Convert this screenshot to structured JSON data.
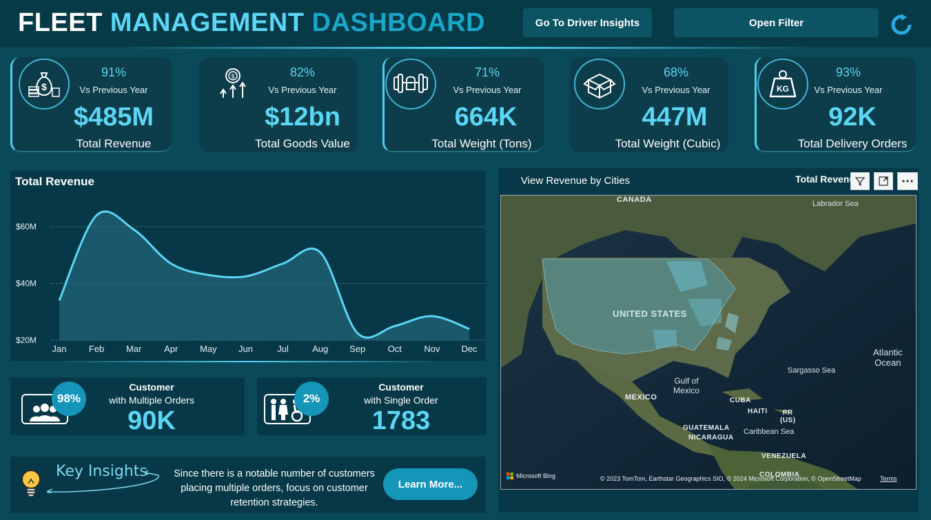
{
  "header": {
    "title_part1": "FLEET",
    "title_part2": "MANAGEMENT",
    "title_part3": "DASHBOARD",
    "driver_btn": "Go To Driver Insights",
    "filter_btn": "Open Filter"
  },
  "kpis": [
    {
      "pct": "91%",
      "vs": "Vs Previous Year",
      "value": "$485M",
      "label": "Total Revenue",
      "icon": "money-bag-icon"
    },
    {
      "pct": "82%",
      "vs": "Vs Previous Year",
      "value": "$12bn",
      "label": "Total Goods Value",
      "icon": "dollar-growth-icon"
    },
    {
      "pct": "71%",
      "vs": "Vs Previous Year",
      "value": "664K",
      "label": "Total Weight (Tons)",
      "icon": "dumbbell-icon"
    },
    {
      "pct": "68%",
      "vs": "Vs Previous Year",
      "value": "447M",
      "label": "Total Weight (Cubic)",
      "icon": "box-icon"
    },
    {
      "pct": "93%",
      "vs": "Vs Previous Year",
      "value": "92K",
      "label": "Total Delivery Orders",
      "icon": "kg-weight-icon"
    }
  ],
  "revenue_chart": {
    "title": "Total Revenue"
  },
  "chart_data": {
    "type": "area",
    "title": "Total Revenue",
    "categories": [
      "Jan",
      "Feb",
      "Mar",
      "Apr",
      "May",
      "Jun",
      "Jul",
      "Aug",
      "Sep",
      "Oct",
      "Nov",
      "Dec"
    ],
    "values": [
      34,
      64,
      59,
      47,
      43,
      42.5,
      47,
      51,
      22.5,
      25,
      28.5,
      24
    ],
    "y_ticks": [
      "$20M",
      "$40M",
      "$60M"
    ],
    "ylim": [
      20,
      70
    ],
    "grid": true,
    "line_color": "#5cd6f5"
  },
  "customers": {
    "multi": {
      "pct": "98%",
      "heading": "Customer",
      "sub": "with Multiple Orders",
      "value": "90K"
    },
    "single": {
      "pct": "2%",
      "heading": "Customer",
      "sub": "with Single Order",
      "value": "1783"
    }
  },
  "insights": {
    "title": "Key Insights",
    "text": "Since there is a notable number of customers placing multiple orders, focus on customer retention strategies.",
    "button": "Learn More..."
  },
  "map": {
    "view_btn": "View Revenue by Cities",
    "title": "Total Revenue by City",
    "labels": {
      "canada": "CANADA",
      "us": "UNITED STATES",
      "mexico": "MEXICO",
      "guatemala": "GUATEMALA",
      "nicaragua": "NICARAGUA",
      "cuba": "CUBA",
      "haiti": "HAITI",
      "pr": "PR",
      "us2": "(US)",
      "venezuela": "VENEZUELA",
      "colombia": "COLOMBIA"
    },
    "seas": {
      "labrador": "Labrador Sea",
      "gulf1": "Gulf of",
      "gulf2": "Mexico",
      "sargasso": "Sargasso Sea",
      "atlantic1": "Atlantic",
      "atlantic2": "Ocean",
      "caribbean": "Caribbean Sea"
    },
    "bing": "Microsoft Bing",
    "copyright": "© 2023 TomTom, Earthstar Geographics SIO, © 2024 Microsoft Corporation, © OpenStreetMap",
    "terms": "Terms"
  },
  "colors": {
    "background": "#0a4a58",
    "accent": "#5cd6f5",
    "badge": "#1596b9"
  }
}
